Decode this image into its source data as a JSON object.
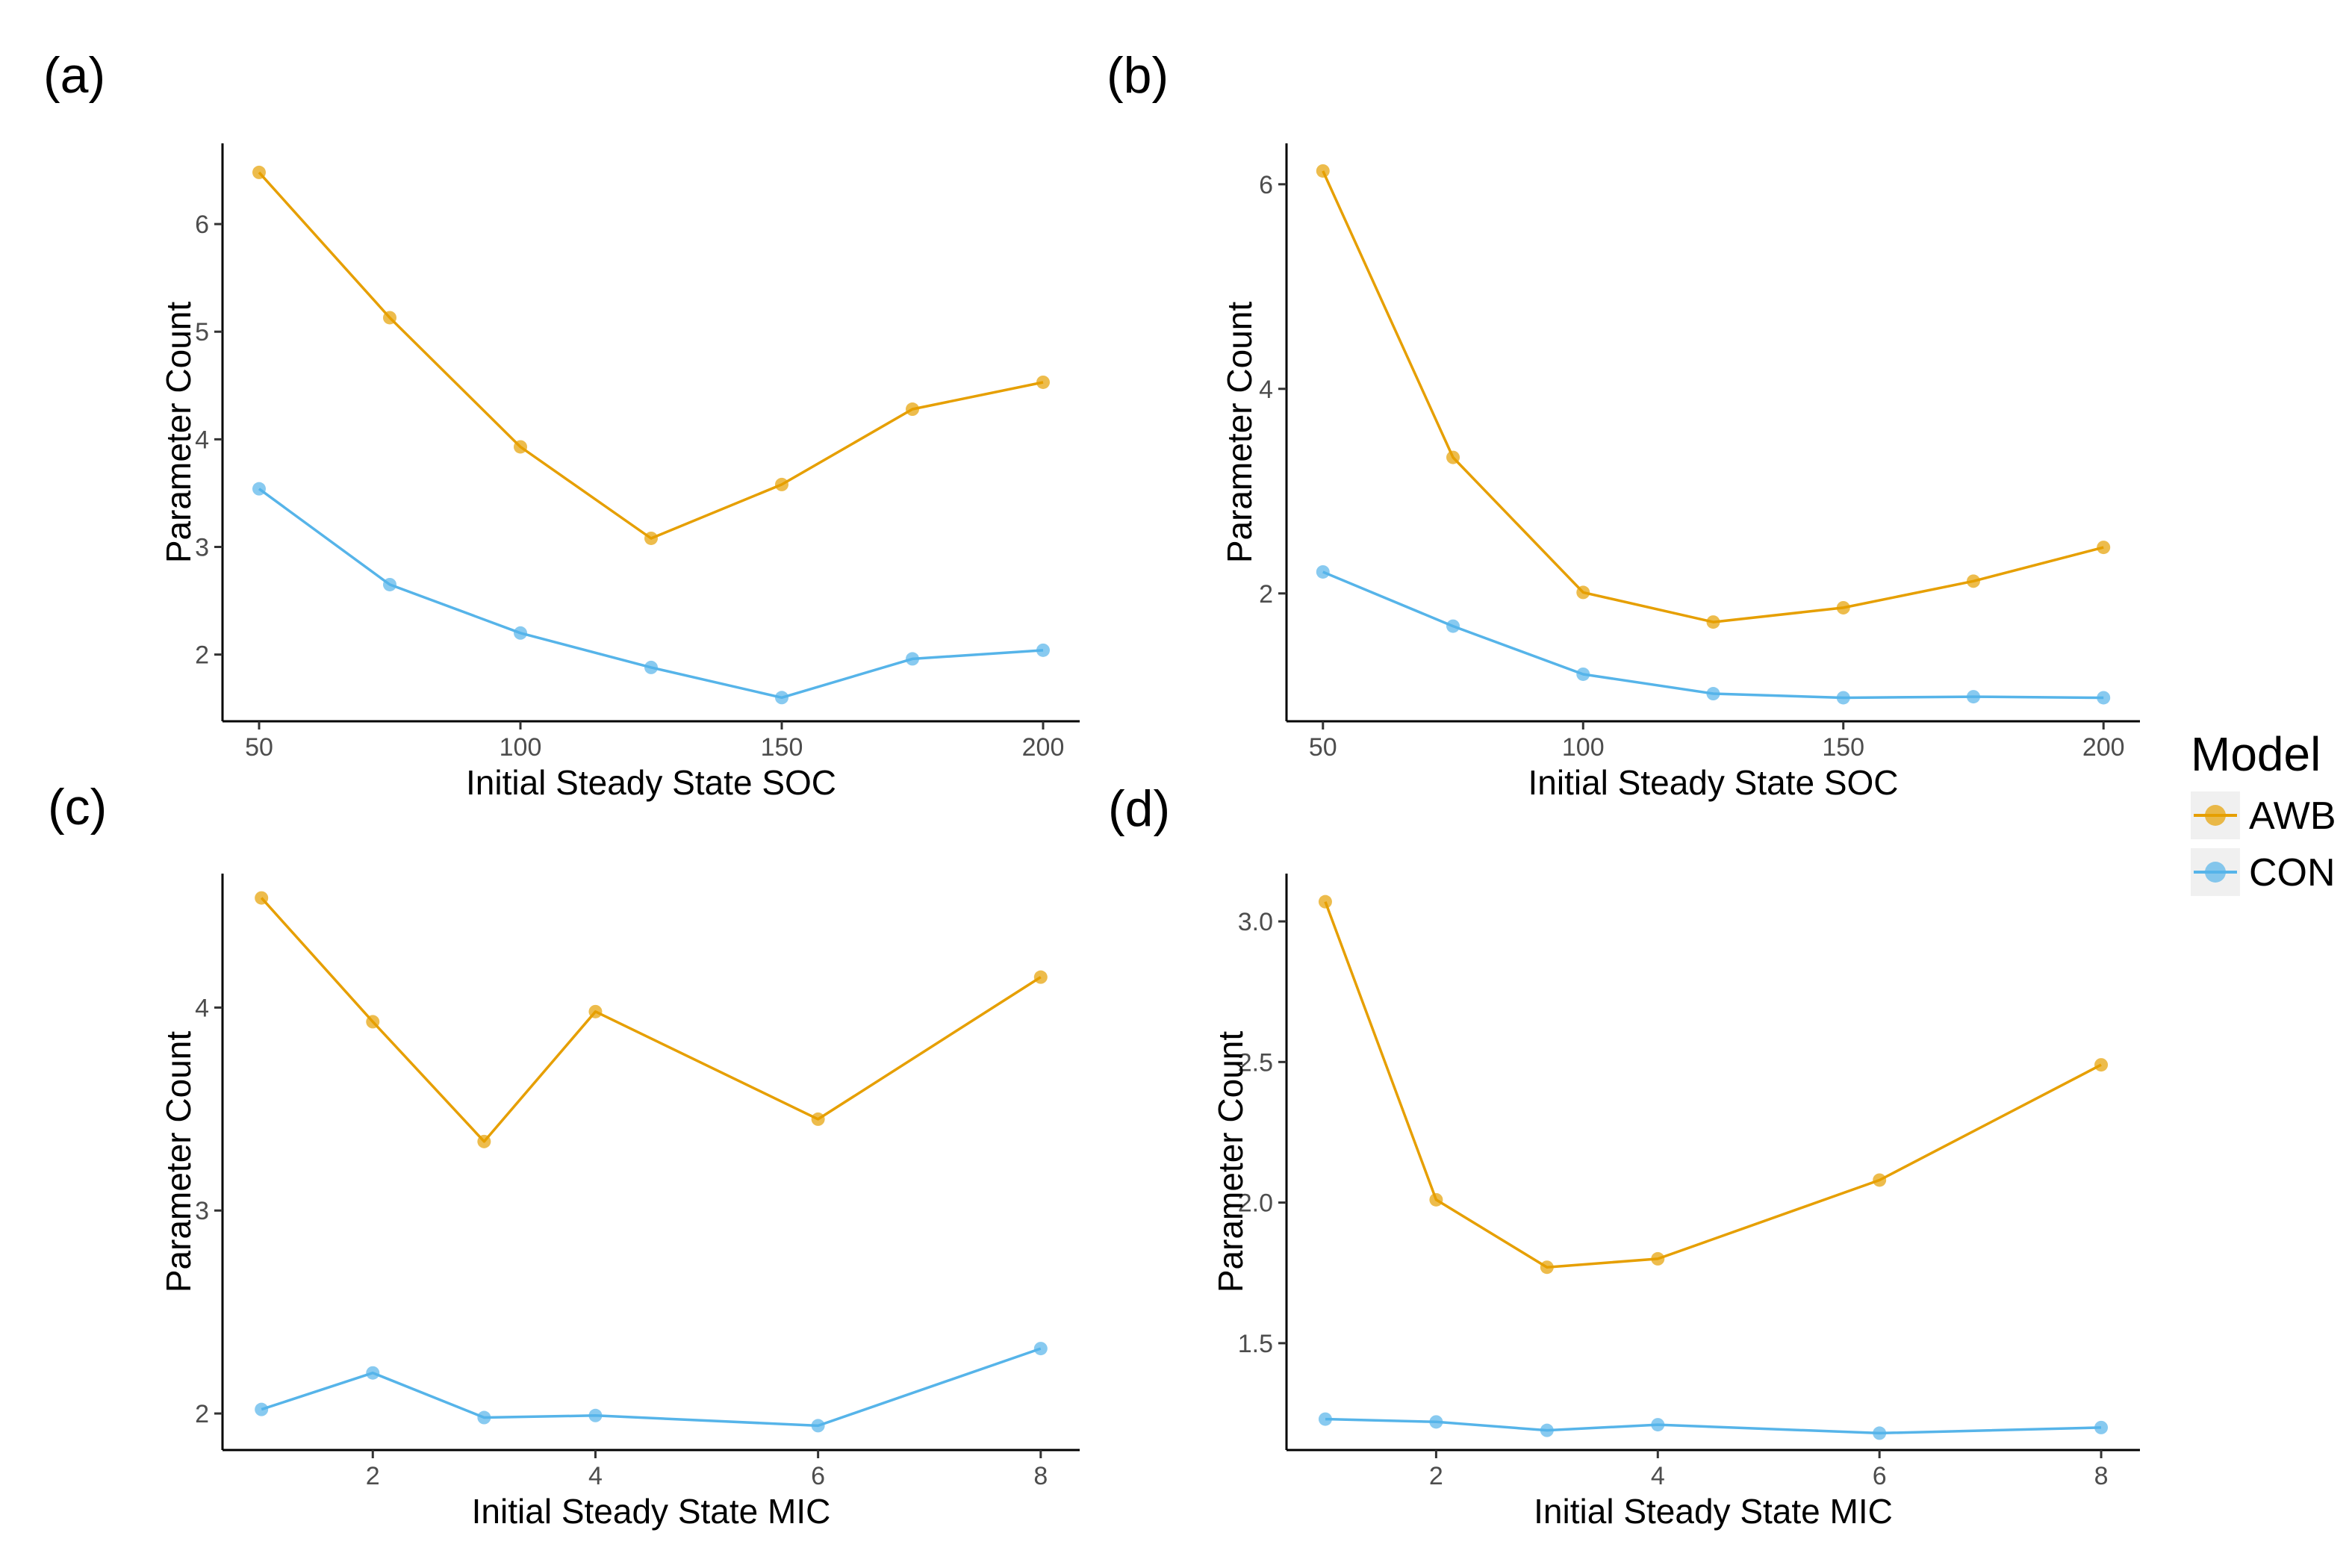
{
  "chart_data": [
    {
      "type": "line",
      "panel_label": "(a)",
      "xlabel": "Initial Steady State SOC",
      "ylabel": "Parameter Count",
      "x": [
        50,
        75,
        100,
        125,
        150,
        175,
        200
      ],
      "xticks": [
        50,
        100,
        150,
        200
      ],
      "yticks": [
        2,
        3,
        4,
        5,
        6
      ],
      "xlim": [
        43,
        207
      ],
      "ylim": [
        1.38,
        6.75
      ],
      "series": [
        {
          "name": "AWB",
          "values": [
            6.48,
            5.13,
            3.93,
            3.08,
            3.58,
            4.28,
            4.53
          ]
        },
        {
          "name": "CON",
          "values": [
            3.54,
            2.65,
            2.2,
            1.88,
            1.6,
            1.96,
            2.04
          ]
        }
      ]
    },
    {
      "type": "line",
      "panel_label": "(b)",
      "xlabel": "Initial Steady State SOC",
      "ylabel": "Parameter Count",
      "x": [
        50,
        75,
        100,
        125,
        150,
        175,
        200
      ],
      "xticks": [
        50,
        100,
        150,
        200
      ],
      "yticks": [
        2,
        4,
        6
      ],
      "xlim": [
        43,
        207
      ],
      "ylim": [
        0.75,
        6.4
      ],
      "series": [
        {
          "name": "AWB",
          "values": [
            6.13,
            3.33,
            2.01,
            1.72,
            1.86,
            2.12,
            2.45
          ]
        },
        {
          "name": "CON",
          "values": [
            2.21,
            1.68,
            1.21,
            1.02,
            0.98,
            0.99,
            0.98
          ]
        }
      ]
    },
    {
      "type": "line",
      "panel_label": "(c)",
      "xlabel": "Initial Steady State MIC",
      "ylabel": "Parameter Count",
      "x": [
        1,
        2,
        3,
        4,
        6,
        8
      ],
      "xticks": [
        2,
        4,
        6,
        8
      ],
      "yticks": [
        2,
        3,
        4
      ],
      "xlim": [
        0.65,
        8.35
      ],
      "ylim": [
        1.82,
        4.66
      ],
      "series": [
        {
          "name": "AWB",
          "values": [
            4.54,
            3.93,
            3.34,
            3.98,
            3.45,
            4.15
          ]
        },
        {
          "name": "CON",
          "values": [
            2.02,
            2.2,
            1.98,
            1.99,
            1.94,
            2.32
          ]
        }
      ]
    },
    {
      "type": "line",
      "panel_label": "(d)",
      "xlabel": "Initial Steady State MIC",
      "ylabel": "Parameter Count",
      "x": [
        1,
        2,
        3,
        4,
        6,
        8
      ],
      "xticks": [
        2,
        4,
        6,
        8
      ],
      "yticks": [
        1.5,
        2.0,
        2.5,
        3.0
      ],
      "ytick_labels": [
        "1.5",
        "2.0",
        "2.5",
        "3.0"
      ],
      "xlim": [
        0.65,
        8.35
      ],
      "ylim": [
        1.12,
        3.17
      ],
      "series": [
        {
          "name": "AWB",
          "values": [
            3.07,
            2.01,
            1.77,
            1.8,
            2.08,
            2.49
          ]
        },
        {
          "name": "CON",
          "values": [
            1.23,
            1.22,
            1.19,
            1.21,
            1.18,
            1.2
          ]
        }
      ]
    }
  ],
  "legend": {
    "title": "Model",
    "placement": "right",
    "items": [
      {
        "label": "AWB",
        "color": "#E69F00"
      },
      {
        "label": "CON",
        "color": "#56B4E9"
      }
    ]
  },
  "grid": false
}
